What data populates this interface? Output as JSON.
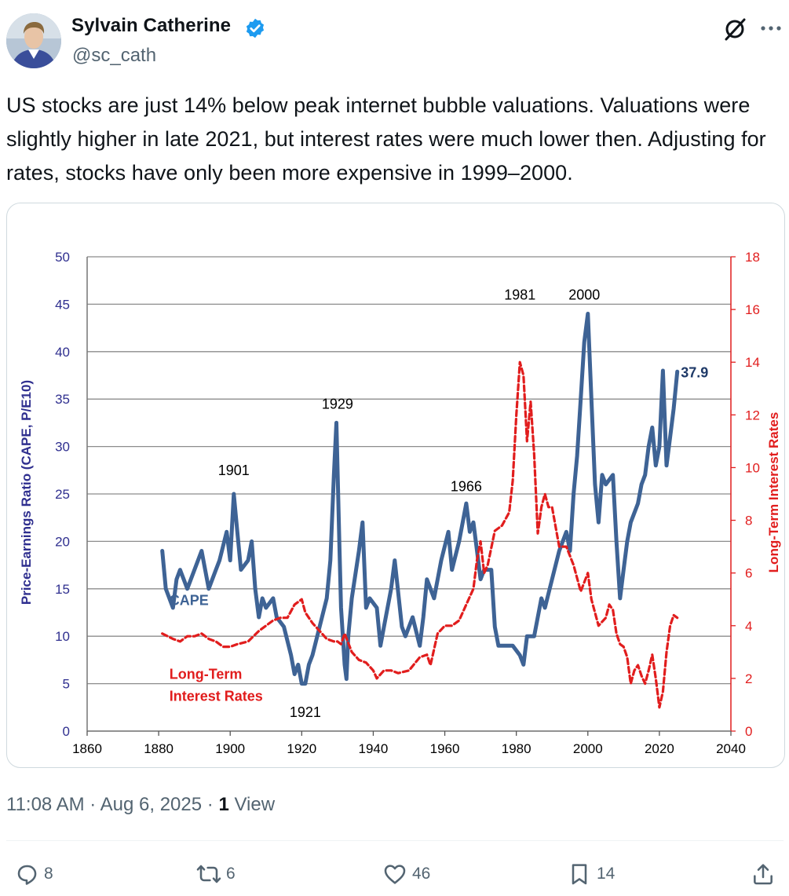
{
  "author": {
    "name": "Sylvain Catherine",
    "handle": "@sc_cath",
    "verified_color": "#1d9bf0"
  },
  "tweet": {
    "text": "US stocks are just 14% below peak internet bubble valuations. Valuations were slightly higher in late 2021, but interest rates were much lower then. Adjusting for rates, stocks have only been more expensive in 1999–2000.",
    "time": "11:08 AM",
    "separator": "·",
    "date": "Aug 6, 2025",
    "views_count": "1",
    "views_label": "View"
  },
  "actions": {
    "replies": "8",
    "reposts": "6",
    "likes": "46",
    "bookmarks": "14"
  },
  "icons": {
    "grok": "grok-icon",
    "more": "more-icon",
    "reply": "reply-icon",
    "repost": "repost-icon",
    "like": "like-icon",
    "bookmark": "bookmark-icon",
    "share": "share-icon",
    "verified": "verified-badge-icon"
  },
  "chart_data": {
    "type": "line",
    "ylabel": "Price-Earnings Ratio (CAPE, P/E10)",
    "y2label": "Long-Term Interest Rates",
    "xlim": [
      1860,
      2040
    ],
    "ylim": [
      0,
      50
    ],
    "y2lim": [
      0,
      18
    ],
    "x_ticks": [
      "1860",
      "1880",
      "1900",
      "1920",
      "1940",
      "1960",
      "1980",
      "2000",
      "2020",
      "2040"
    ],
    "y_ticks": [
      "0",
      "5",
      "10",
      "15",
      "20",
      "25",
      "30",
      "35",
      "40",
      "45",
      "50"
    ],
    "y2_ticks": [
      "0",
      "2",
      "4",
      "6",
      "8",
      "10",
      "12",
      "14",
      "16",
      "18"
    ],
    "colors": {
      "cape": "#3e6395",
      "rates": "#e11d1d",
      "left_axis": "#2f2f8f",
      "right_axis": "#e11d1d",
      "grid": "#8c8c8c"
    },
    "series": [
      {
        "name": "CAPE",
        "axis": "left",
        "x": [
          1881,
          1882,
          1884,
          1885,
          1886,
          1888,
          1890,
          1892,
          1894,
          1896,
          1897,
          1899,
          1900,
          1901,
          1902,
          1903,
          1905,
          1906,
          1907,
          1908,
          1909,
          1910,
          1912,
          1913,
          1915,
          1917,
          1918,
          1919,
          1920,
          1921,
          1922,
          1923,
          1925,
          1927,
          1928,
          1929,
          1929.7,
          1930.5,
          1931,
          1932,
          1932.5,
          1933,
          1934,
          1936,
          1937,
          1938,
          1939,
          1941,
          1942,
          1943,
          1945,
          1946,
          1948,
          1949,
          1951,
          1953,
          1954,
          1955,
          1957,
          1959,
          1961,
          1962,
          1964,
          1966,
          1967,
          1968,
          1969,
          1970,
          1971,
          1973,
          1974,
          1975,
          1977,
          1979,
          1981,
          1982,
          1983,
          1985,
          1987,
          1988,
          1990,
          1992,
          1994,
          1995,
          1996,
          1997,
          1998,
          1999,
          2000,
          2001,
          2002,
          2003,
          2004,
          2005,
          2007,
          2008,
          2009,
          2010,
          2011,
          2012,
          2014,
          2015,
          2016,
          2017,
          2018,
          2019,
          2020,
          2021,
          2022,
          2023,
          2024,
          2025
        ],
        "values": [
          19,
          15,
          13,
          16,
          17,
          15,
          17,
          19,
          15,
          17,
          18,
          21,
          18,
          25,
          21,
          17,
          18,
          20,
          15,
          12,
          14,
          13,
          14,
          12,
          11,
          8,
          6,
          7,
          5,
          5,
          7,
          8,
          11,
          14,
          18,
          27,
          32.5,
          20,
          13,
          7,
          5.5,
          10,
          14,
          19,
          22,
          13,
          14,
          13,
          9,
          11,
          15,
          18,
          11,
          10,
          12,
          9,
          12,
          16,
          14,
          18,
          21,
          17,
          20,
          24,
          21,
          22,
          19,
          16,
          17,
          17,
          11,
          9,
          9,
          9,
          8,
          7,
          10,
          10,
          14,
          13,
          16,
          19,
          21,
          19,
          25,
          29,
          35,
          41,
          44,
          35,
          26,
          22,
          27,
          26,
          27,
          20,
          14,
          17,
          20,
          22,
          24,
          26,
          27,
          30,
          32,
          28,
          30,
          38,
          28,
          31,
          34,
          37.9
        ]
      },
      {
        "name": "Long-Term Interest Rates",
        "axis": "right",
        "x": [
          1881,
          1884,
          1886,
          1888,
          1890,
          1892,
          1894,
          1896,
          1898,
          1900,
          1902,
          1905,
          1908,
          1910,
          1912,
          1914,
          1916,
          1918,
          1920,
          1921,
          1923,
          1925,
          1927,
          1929,
          1930,
          1931,
          1932,
          1934,
          1936,
          1938,
          1940,
          1941,
          1943,
          1945,
          1947,
          1950,
          1953,
          1955,
          1956,
          1958,
          1960,
          1962,
          1964,
          1966,
          1968,
          1969,
          1970,
          1971,
          1972,
          1974,
          1976,
          1978,
          1979,
          1980,
          1981,
          1982,
          1983,
          1984,
          1985,
          1986,
          1987,
          1988,
          1989,
          1990,
          1992,
          1994,
          1996,
          1998,
          2000,
          2001,
          2003,
          2005,
          2006,
          2007,
          2008,
          2009,
          2010,
          2011,
          2012,
          2013,
          2014,
          2015,
          2016,
          2017,
          2018,
          2019,
          2020,
          2021,
          2022,
          2023,
          2024,
          2025
        ],
        "values": [
          3.7,
          3.5,
          3.4,
          3.6,
          3.6,
          3.7,
          3.5,
          3.4,
          3.2,
          3.2,
          3.3,
          3.4,
          3.8,
          4.0,
          4.2,
          4.3,
          4.3,
          4.8,
          5.0,
          4.5,
          4.1,
          3.8,
          3.5,
          3.4,
          3.4,
          3.3,
          3.7,
          3.0,
          2.7,
          2.6,
          2.3,
          2.0,
          2.3,
          2.3,
          2.2,
          2.3,
          2.8,
          2.9,
          2.5,
          3.7,
          4.0,
          4.0,
          4.2,
          4.8,
          5.4,
          6.5,
          7.2,
          6.0,
          6.3,
          7.6,
          7.8,
          8.3,
          9.5,
          12.0,
          14.0,
          13.5,
          11.0,
          12.5,
          10.5,
          7.5,
          8.5,
          9.0,
          8.5,
          8.5,
          7.0,
          7.0,
          6.3,
          5.3,
          6.0,
          5.0,
          4.0,
          4.3,
          4.8,
          4.6,
          3.7,
          3.3,
          3.2,
          2.8,
          1.8,
          2.3,
          2.5,
          2.1,
          1.8,
          2.3,
          2.9,
          2.0,
          0.9,
          1.5,
          3.0,
          4.0,
          4.4,
          4.3
        ]
      }
    ],
    "annotations": [
      {
        "label": "1901",
        "x": 1901,
        "y": 27
      },
      {
        "label": "1929",
        "x": 1930,
        "y": 34
      },
      {
        "label": "1921",
        "x": 1921,
        "y": 1.5
      },
      {
        "label": "1966",
        "x": 1966,
        "y": 25.3
      },
      {
        "label": "1981",
        "x": 1981,
        "y": 45.5
      },
      {
        "label": "2000",
        "x": 1999,
        "y": 45.5
      },
      {
        "label": "37.9",
        "x": 2026,
        "y": 37.3
      },
      {
        "label": "CAPE",
        "x": 1883,
        "y": 13.3
      },
      {
        "label": "Long-Term",
        "x": 1883,
        "y": 5.5
      },
      {
        "label": "Interest Rates",
        "x": 1883,
        "y": 3.2
      }
    ]
  }
}
